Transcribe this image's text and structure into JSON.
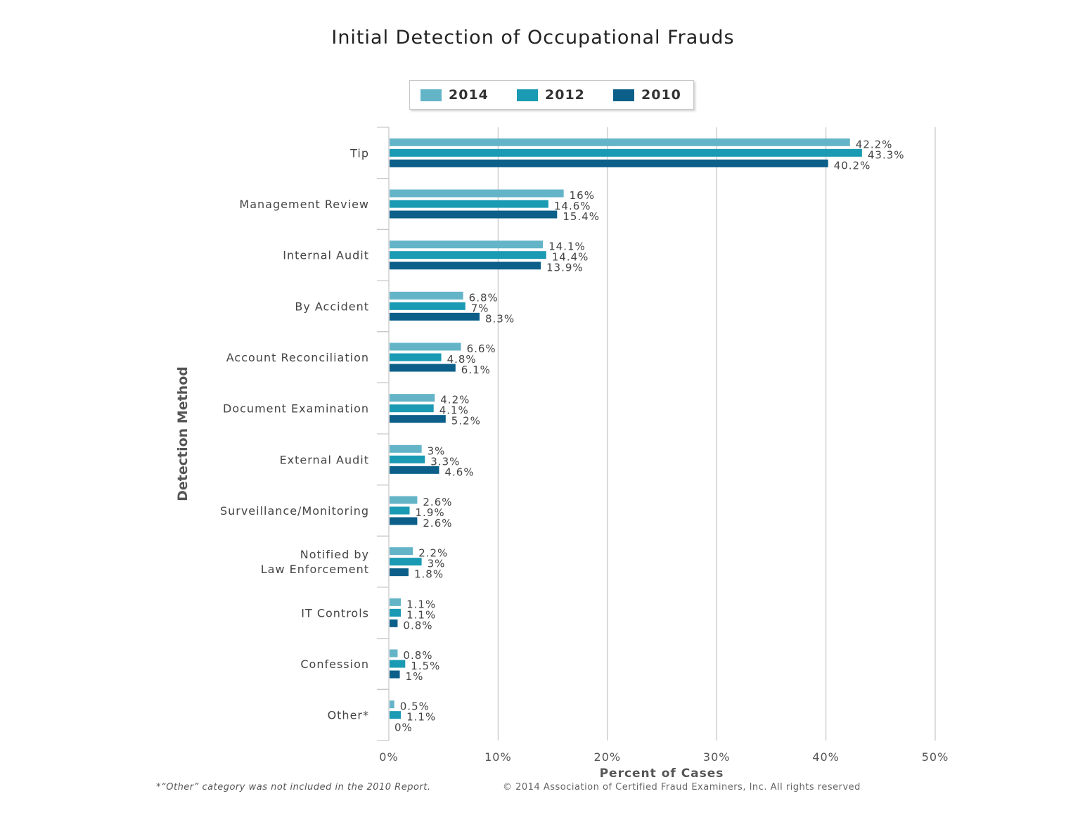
{
  "chart_data": {
    "type": "bar",
    "orientation": "horizontal",
    "title": "Initial Detection of Occupational Frauds",
    "xlabel": "Percent of Cases",
    "ylabel": "Detection Method",
    "xlim": [
      0,
      50
    ],
    "x_ticks": [
      "0%",
      "10%",
      "20%",
      "30%",
      "40%",
      "50%"
    ],
    "grid": true,
    "legend_position": "top-center",
    "categories": [
      "Tip",
      "Management Review",
      "Internal Audit",
      "By Accident",
      "Account Reconciliation",
      "Document Examination",
      "External Audit",
      "Surveillance/Monitoring",
      "Notified by\nLaw Enforcement",
      "IT Controls",
      "Confession",
      "Other*"
    ],
    "series": [
      {
        "name": "2014",
        "color": "#64b4c8",
        "values": [
          42.2,
          16,
          14.1,
          6.8,
          6.6,
          4.2,
          3,
          2.6,
          2.2,
          1.1,
          0.8,
          0.5
        ],
        "labels": [
          "42.2%",
          "16%",
          "14.1%",
          "6.8%",
          "6.6%",
          "4.2%",
          "3%",
          "2.6%",
          "2.2%",
          "1.1%",
          "0.8%",
          "0.5%"
        ]
      },
      {
        "name": "2012",
        "color": "#1a9ab3",
        "values": [
          43.3,
          14.6,
          14.4,
          7,
          4.8,
          4.1,
          3.3,
          1.9,
          3,
          1.1,
          1.5,
          1.1
        ],
        "labels": [
          "43.3%",
          "14.6%",
          "14.4%",
          "7%",
          "4.8%",
          "4.1%",
          "3.3%",
          "1.9%",
          "3%",
          "1.1%",
          "1.5%",
          "1.1%"
        ]
      },
      {
        "name": "2010",
        "color": "#0b5f88",
        "values": [
          40.2,
          15.4,
          13.9,
          8.3,
          6.1,
          5.2,
          4.6,
          2.6,
          1.8,
          0.8,
          1,
          0
        ],
        "labels": [
          "40.2%",
          "15.4%",
          "13.9%",
          "8.3%",
          "6.1%",
          "5.2%",
          "4.6%",
          "2.6%",
          "1.8%",
          "0.8%",
          "1%",
          "0%"
        ]
      }
    ],
    "footnote": "*“Other” category was not included in the 2010 Report.",
    "copyright": "© 2014 Association of Certified Fraud Examiners, Inc. All rights reserved"
  }
}
